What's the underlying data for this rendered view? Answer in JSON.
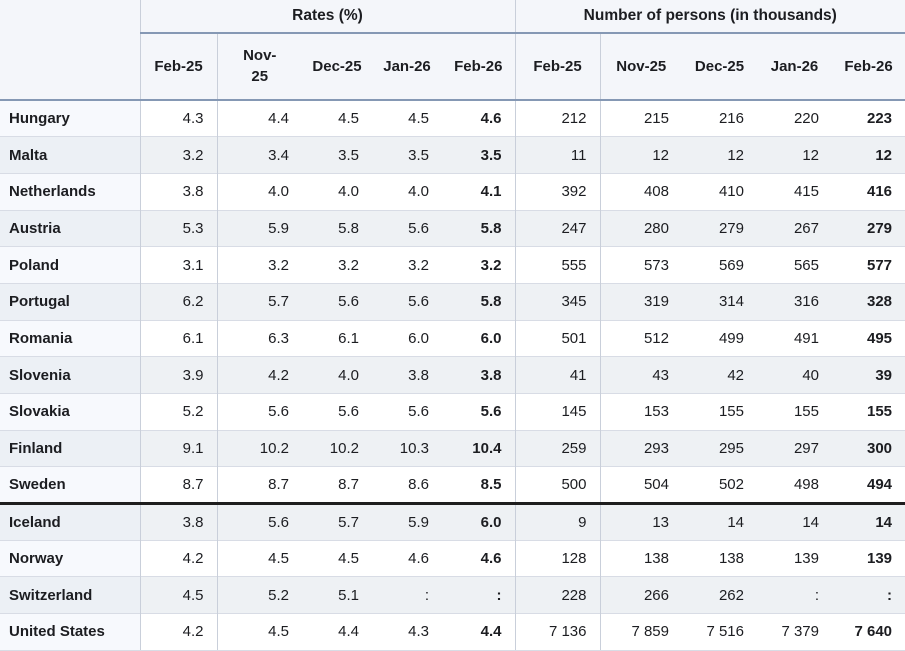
{
  "style": {
    "header_bg": "#f4f6fa",
    "blue_rule": "#8598b4",
    "vertical_rule": "#c9cfda",
    "row_rule": "#d8dce5",
    "stripe": "#eef1f4",
    "group_divider": "#1e1e1e",
    "text": "#1c1d21"
  },
  "chart_data": {
    "type": "table",
    "title": "",
    "corner_label": "",
    "column_groups": [
      {
        "label": "Rates (%)",
        "columns": [
          "Feb-25",
          "Nov-25",
          "Dec-25",
          "Jan-26",
          "Feb-26"
        ]
      },
      {
        "label": "Number of persons (in thousands)",
        "columns": [
          "Feb-25",
          "Nov-25",
          "Dec-25",
          "Jan-26",
          "Feb-26"
        ]
      }
    ],
    "missing_value_symbol": ":",
    "rows": [
      {
        "country": "Hungary",
        "rates": [
          "4.3",
          "4.4",
          "4.5",
          "4.5",
          "4.6"
        ],
        "persons": [
          "212",
          "215",
          "216",
          "220",
          "223"
        ]
      },
      {
        "country": "Malta",
        "rates": [
          "3.2",
          "3.4",
          "3.5",
          "3.5",
          "3.5"
        ],
        "persons": [
          "11",
          "12",
          "12",
          "12",
          "12"
        ]
      },
      {
        "country": "Netherlands",
        "rates": [
          "3.8",
          "4.0",
          "4.0",
          "4.0",
          "4.1"
        ],
        "persons": [
          "392",
          "408",
          "410",
          "415",
          "416"
        ]
      },
      {
        "country": "Austria",
        "rates": [
          "5.3",
          "5.9",
          "5.8",
          "5.6",
          "5.8"
        ],
        "persons": [
          "247",
          "280",
          "279",
          "267",
          "279"
        ]
      },
      {
        "country": "Poland",
        "rates": [
          "3.1",
          "3.2",
          "3.2",
          "3.2",
          "3.2"
        ],
        "persons": [
          "555",
          "573",
          "569",
          "565",
          "577"
        ]
      },
      {
        "country": "Portugal",
        "rates": [
          "6.2",
          "5.7",
          "5.6",
          "5.6",
          "5.8"
        ],
        "persons": [
          "345",
          "319",
          "314",
          "316",
          "328"
        ]
      },
      {
        "country": "Romania",
        "rates": [
          "6.1",
          "6.3",
          "6.1",
          "6.0",
          "6.0"
        ],
        "persons": [
          "501",
          "512",
          "499",
          "491",
          "495"
        ]
      },
      {
        "country": "Slovenia",
        "rates": [
          "3.9",
          "4.2",
          "4.0",
          "3.8",
          "3.8"
        ],
        "persons": [
          "41",
          "43",
          "42",
          "40",
          "39"
        ]
      },
      {
        "country": "Slovakia",
        "rates": [
          "5.2",
          "5.6",
          "5.6",
          "5.6",
          "5.6"
        ],
        "persons": [
          "145",
          "153",
          "155",
          "155",
          "155"
        ]
      },
      {
        "country": "Finland",
        "rates": [
          "9.1",
          "10.2",
          "10.2",
          "10.3",
          "10.4"
        ],
        "persons": [
          "259",
          "293",
          "295",
          "297",
          "300"
        ]
      },
      {
        "country": "Sweden",
        "rates": [
          "8.7",
          "8.7",
          "8.7",
          "8.6",
          "8.5"
        ],
        "persons": [
          "500",
          "504",
          "502",
          "498",
          "494"
        ]
      },
      {
        "country": "Iceland",
        "rates": [
          "3.8",
          "5.6",
          "5.7",
          "5.9",
          "6.0"
        ],
        "persons": [
          "9",
          "13",
          "14",
          "14",
          "14"
        ],
        "divider_above": true
      },
      {
        "country": "Norway",
        "rates": [
          "4.2",
          "4.5",
          "4.5",
          "4.6",
          "4.6"
        ],
        "persons": [
          "128",
          "138",
          "138",
          "139",
          "139"
        ]
      },
      {
        "country": "Switzerland",
        "rates": [
          "4.5",
          "5.2",
          "5.1",
          ":",
          ":"
        ],
        "persons": [
          "228",
          "266",
          "262",
          ":",
          ":"
        ]
      },
      {
        "country": "United States",
        "rates": [
          "4.2",
          "4.5",
          "4.4",
          "4.3",
          "4.4"
        ],
        "persons": [
          "7 136",
          "7 859",
          "7 516",
          "7 379",
          "7 640"
        ]
      }
    ]
  }
}
